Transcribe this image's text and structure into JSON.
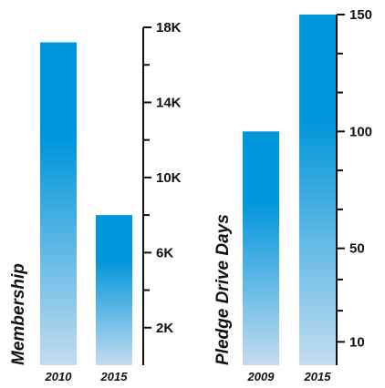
{
  "chart_data": [
    {
      "type": "bar",
      "categories": [
        "2010",
        "2015"
      ],
      "values": [
        17200,
        8000
      ],
      "ylabel": "Membership",
      "ylim": [
        0,
        18000
      ],
      "ytick_values": [
        2000,
        6000,
        10000,
        14000,
        18000
      ],
      "ytick_labels": [
        "2K",
        "6K",
        "10K",
        "14K",
        "18K"
      ],
      "axis_position": "right",
      "grid": false,
      "colors": {
        "bar_top": "#0096db",
        "bar_bottom": "#c4dcf0",
        "axis": "#111111"
      }
    },
    {
      "type": "bar",
      "categories": [
        "2009",
        "2015"
      ],
      "values": [
        100,
        150
      ],
      "ylabel": "Pledge Drive Days",
      "ylim": [
        0,
        150
      ],
      "ytick_values": [
        10,
        50,
        100,
        150
      ],
      "ytick_labels": [
        "10",
        "50",
        "100",
        "150"
      ],
      "axis_position": "right",
      "grid": false,
      "colors": {
        "bar_top": "#0096db",
        "bar_bottom": "#c4dcf0",
        "axis": "#111111"
      }
    }
  ]
}
